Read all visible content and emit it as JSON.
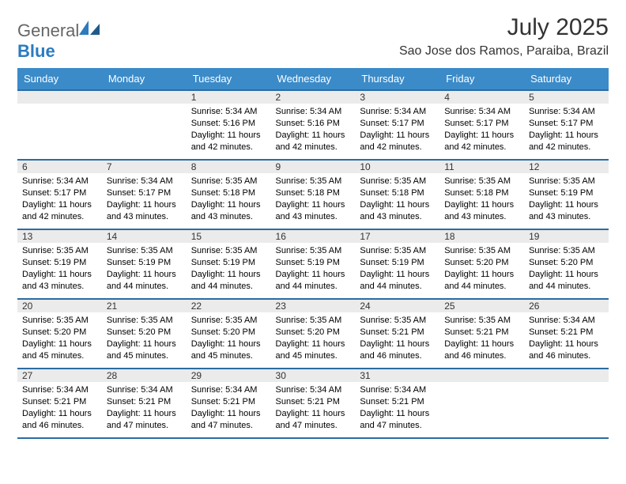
{
  "logo": {
    "text_gray": "General",
    "text_blue": "Blue"
  },
  "title": "July 2025",
  "location": "Sao Jose dos Ramos, Paraiba, Brazil",
  "colors": {
    "header_bg": "#3b8bc9",
    "border": "#2b6ca3",
    "daynum_bg": "#ebebeb",
    "logo_blue": "#2b7bbf"
  },
  "weekdays": [
    "Sunday",
    "Monday",
    "Tuesday",
    "Wednesday",
    "Thursday",
    "Friday",
    "Saturday"
  ],
  "weeks": [
    [
      null,
      null,
      {
        "n": "1",
        "sr": "5:34 AM",
        "ss": "5:16 PM",
        "dl": "11 hours and 42 minutes."
      },
      {
        "n": "2",
        "sr": "5:34 AM",
        "ss": "5:16 PM",
        "dl": "11 hours and 42 minutes."
      },
      {
        "n": "3",
        "sr": "5:34 AM",
        "ss": "5:17 PM",
        "dl": "11 hours and 42 minutes."
      },
      {
        "n": "4",
        "sr": "5:34 AM",
        "ss": "5:17 PM",
        "dl": "11 hours and 42 minutes."
      },
      {
        "n": "5",
        "sr": "5:34 AM",
        "ss": "5:17 PM",
        "dl": "11 hours and 42 minutes."
      }
    ],
    [
      {
        "n": "6",
        "sr": "5:34 AM",
        "ss": "5:17 PM",
        "dl": "11 hours and 42 minutes."
      },
      {
        "n": "7",
        "sr": "5:34 AM",
        "ss": "5:17 PM",
        "dl": "11 hours and 43 minutes."
      },
      {
        "n": "8",
        "sr": "5:35 AM",
        "ss": "5:18 PM",
        "dl": "11 hours and 43 minutes."
      },
      {
        "n": "9",
        "sr": "5:35 AM",
        "ss": "5:18 PM",
        "dl": "11 hours and 43 minutes."
      },
      {
        "n": "10",
        "sr": "5:35 AM",
        "ss": "5:18 PM",
        "dl": "11 hours and 43 minutes."
      },
      {
        "n": "11",
        "sr": "5:35 AM",
        "ss": "5:18 PM",
        "dl": "11 hours and 43 minutes."
      },
      {
        "n": "12",
        "sr": "5:35 AM",
        "ss": "5:19 PM",
        "dl": "11 hours and 43 minutes."
      }
    ],
    [
      {
        "n": "13",
        "sr": "5:35 AM",
        "ss": "5:19 PM",
        "dl": "11 hours and 43 minutes."
      },
      {
        "n": "14",
        "sr": "5:35 AM",
        "ss": "5:19 PM",
        "dl": "11 hours and 44 minutes."
      },
      {
        "n": "15",
        "sr": "5:35 AM",
        "ss": "5:19 PM",
        "dl": "11 hours and 44 minutes."
      },
      {
        "n": "16",
        "sr": "5:35 AM",
        "ss": "5:19 PM",
        "dl": "11 hours and 44 minutes."
      },
      {
        "n": "17",
        "sr": "5:35 AM",
        "ss": "5:19 PM",
        "dl": "11 hours and 44 minutes."
      },
      {
        "n": "18",
        "sr": "5:35 AM",
        "ss": "5:20 PM",
        "dl": "11 hours and 44 minutes."
      },
      {
        "n": "19",
        "sr": "5:35 AM",
        "ss": "5:20 PM",
        "dl": "11 hours and 44 minutes."
      }
    ],
    [
      {
        "n": "20",
        "sr": "5:35 AM",
        "ss": "5:20 PM",
        "dl": "11 hours and 45 minutes."
      },
      {
        "n": "21",
        "sr": "5:35 AM",
        "ss": "5:20 PM",
        "dl": "11 hours and 45 minutes."
      },
      {
        "n": "22",
        "sr": "5:35 AM",
        "ss": "5:20 PM",
        "dl": "11 hours and 45 minutes."
      },
      {
        "n": "23",
        "sr": "5:35 AM",
        "ss": "5:20 PM",
        "dl": "11 hours and 45 minutes."
      },
      {
        "n": "24",
        "sr": "5:35 AM",
        "ss": "5:21 PM",
        "dl": "11 hours and 46 minutes."
      },
      {
        "n": "25",
        "sr": "5:35 AM",
        "ss": "5:21 PM",
        "dl": "11 hours and 46 minutes."
      },
      {
        "n": "26",
        "sr": "5:34 AM",
        "ss": "5:21 PM",
        "dl": "11 hours and 46 minutes."
      }
    ],
    [
      {
        "n": "27",
        "sr": "5:34 AM",
        "ss": "5:21 PM",
        "dl": "11 hours and 46 minutes."
      },
      {
        "n": "28",
        "sr": "5:34 AM",
        "ss": "5:21 PM",
        "dl": "11 hours and 47 minutes."
      },
      {
        "n": "29",
        "sr": "5:34 AM",
        "ss": "5:21 PM",
        "dl": "11 hours and 47 minutes."
      },
      {
        "n": "30",
        "sr": "5:34 AM",
        "ss": "5:21 PM",
        "dl": "11 hours and 47 minutes."
      },
      {
        "n": "31",
        "sr": "5:34 AM",
        "ss": "5:21 PM",
        "dl": "11 hours and 47 minutes."
      },
      null,
      null
    ]
  ],
  "labels": {
    "sunrise": "Sunrise:",
    "sunset": "Sunset:",
    "daylight": "Daylight:"
  }
}
